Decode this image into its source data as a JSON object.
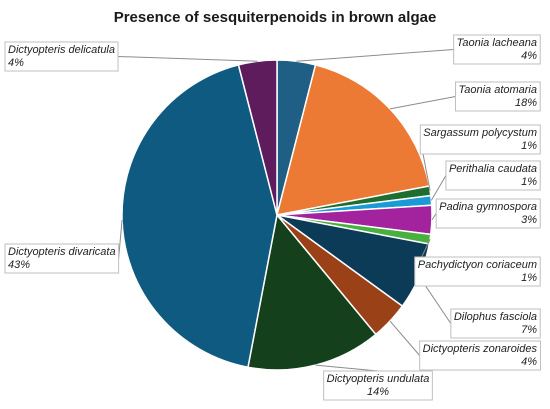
{
  "chart_data": {
    "type": "pie",
    "title": "Presence of sesquiterpenoids in brown algae",
    "slices": [
      {
        "label": "Taonia lacheana",
        "value": 4,
        "pct_label": "4%",
        "color": "#1f5f86"
      },
      {
        "label": "Taonia atomaria",
        "value": 18,
        "pct_label": "18%",
        "color": "#ec7a35"
      },
      {
        "label": "Sargassum polycystum",
        "value": 1,
        "pct_label": "1%",
        "color": "#1e6e2f"
      },
      {
        "label": "Perithalia caudata",
        "value": 1,
        "pct_label": "1%",
        "color": "#1a9ad7"
      },
      {
        "label": "Padina gymnospora",
        "value": 3,
        "pct_label": "3%",
        "color": "#a3239f"
      },
      {
        "label": "Pachydictyon coriaceum",
        "value": 1,
        "pct_label": "1%",
        "color": "#48b03e"
      },
      {
        "label": "Dilophus fasciola",
        "value": 7,
        "pct_label": "7%",
        "color": "#0b3b56"
      },
      {
        "label": "Dictyopteris zonaroides",
        "value": 4,
        "pct_label": "4%",
        "color": "#9a4118"
      },
      {
        "label": "Dictyopteris undulata",
        "value": 14,
        "pct_label": "14%",
        "color": "#14401b"
      },
      {
        "label": "Dictyopteris divaricata",
        "value": 43,
        "pct_label": "43%",
        "color": "#0f5a80"
      },
      {
        "label": "Dictyopteris delicatula",
        "value": 4,
        "pct_label": "4%",
        "color": "#5e1c5c"
      }
    ],
    "start_angle_deg": 0,
    "direction": "clockwise",
    "legend": "none"
  }
}
